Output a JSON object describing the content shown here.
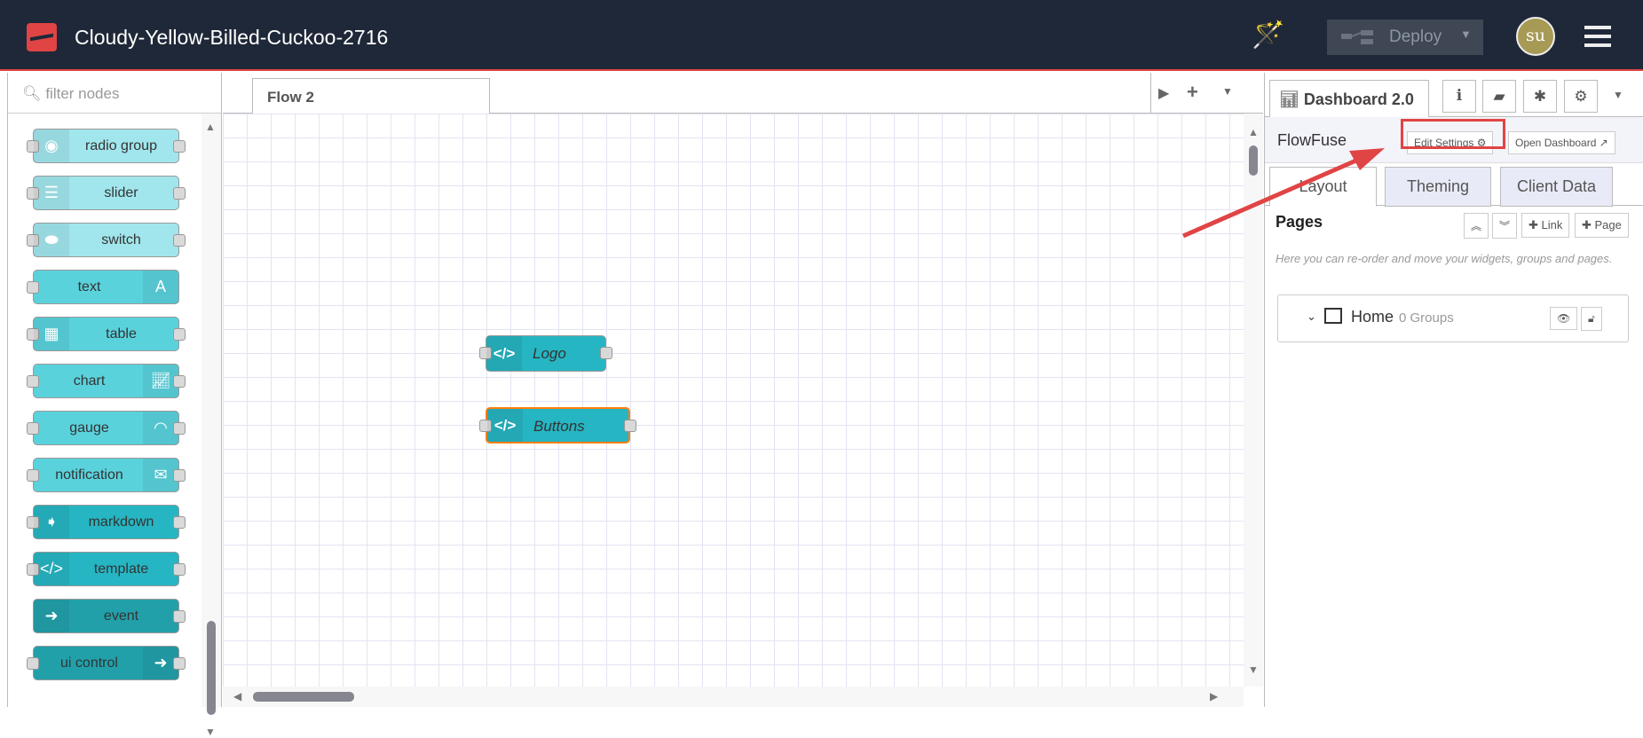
{
  "header": {
    "title": "Cloudy-Yellow-Billed-Cuckoo-2716",
    "deploy_label": "Deploy",
    "avatar_initials": "su"
  },
  "palette": {
    "filter_placeholder": "filter nodes",
    "nodes": [
      {
        "label": "radio group",
        "icon": "radio-icon",
        "side": "left",
        "color": "#a1e6ec",
        "ports": "both"
      },
      {
        "label": "slider",
        "icon": "sliders-icon",
        "side": "left",
        "color": "#a1e6ec",
        "ports": "both"
      },
      {
        "label": "switch",
        "icon": "toggle-icon",
        "side": "left",
        "color": "#a1e6ec",
        "ports": "both"
      },
      {
        "label": "text",
        "icon": "font-icon",
        "side": "right",
        "color": "#5ad2dc",
        "ports": "in"
      },
      {
        "label": "table",
        "icon": "table-icon",
        "side": "left",
        "color": "#5ad2dc",
        "ports": "both"
      },
      {
        "label": "chart",
        "icon": "chart-icon",
        "side": "right",
        "color": "#5ad2dc",
        "ports": "both"
      },
      {
        "label": "gauge",
        "icon": "gauge-icon",
        "side": "right",
        "color": "#5ad2dc",
        "ports": "both"
      },
      {
        "label": "notification",
        "icon": "envelope-icon",
        "side": "right",
        "color": "#5ad2dc",
        "ports": "both"
      },
      {
        "label": "markdown",
        "icon": "arrow-right-icon",
        "side": "left",
        "color": "#26b5c2",
        "ports": "both"
      },
      {
        "label": "template",
        "icon": "code-icon",
        "side": "left",
        "color": "#26b5c2",
        "ports": "both"
      },
      {
        "label": "event",
        "icon": "circle-arrow-icon",
        "side": "left",
        "color": "#22a0aa",
        "ports": "out"
      },
      {
        "label": "ui control",
        "icon": "circle-arrow-icon",
        "side": "right",
        "color": "#22a0aa",
        "ports": "both"
      }
    ]
  },
  "workspace": {
    "tab": "Flow 2",
    "nodes": [
      {
        "label": "Logo",
        "selected": false
      },
      {
        "label": "Buttons",
        "selected": true
      }
    ]
  },
  "sidebar": {
    "tab": "Dashboard 2.0",
    "name": "FlowFuse",
    "edit_settings": "Edit Settings",
    "open_dashboard": "Open Dashboard",
    "subtabs": [
      "Layout",
      "Theming",
      "Client Data"
    ],
    "pages_title": "Pages",
    "link_btn": "Link",
    "page_btn": "Page",
    "hint": "Here you can re-order and move your widgets, groups and pages.",
    "page_name": "Home",
    "page_groups": "0 Groups"
  },
  "colors": {
    "header": "#1f2838",
    "accent": "#e04444",
    "selected": "#ff7f0e"
  }
}
